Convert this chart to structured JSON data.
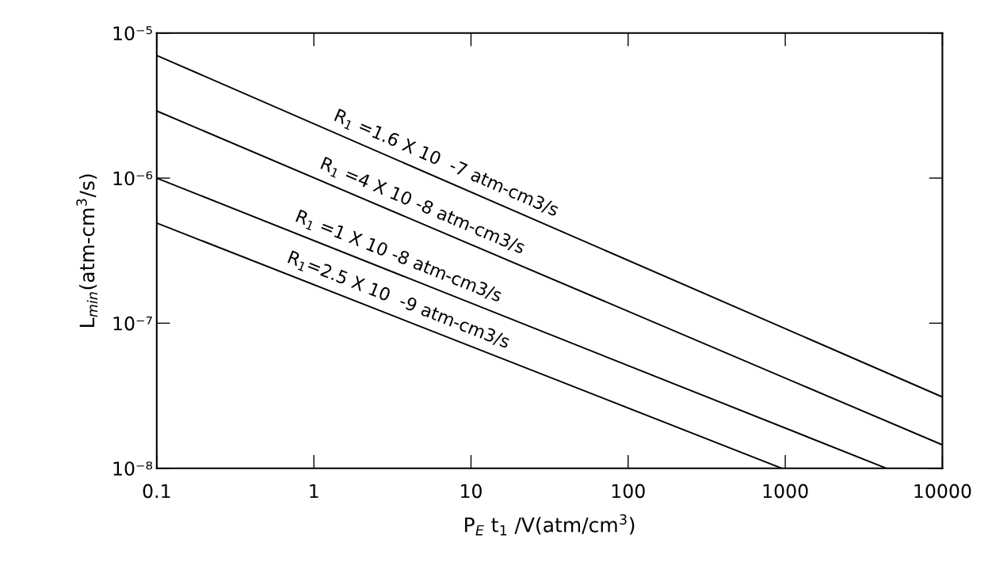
{
  "chart_data": {
    "type": "line",
    "xlabel": "P$_{E}$ t$_{1}$ /V(atm/cm$^{3}$)",
    "ylabel": "L$_{min}$(atm-cm$^{3}$/s)",
    "log": "xy",
    "grid": false,
    "marker": "none",
    "line_style": "solid",
    "xlim": [
      0.1,
      10000
    ],
    "ylim": [
      1e-08,
      1e-05
    ],
    "xticks": [
      {
        "value": 0.1,
        "label": "0.1"
      },
      1,
      10,
      100,
      1000,
      10000
    ],
    "yticks": [
      {
        "value": 1e-08,
        "label": "10⁻⁸"
      },
      {
        "value": 1e-07,
        "label": "10⁻⁷"
      },
      {
        "value": 1e-06,
        "label": "10⁻⁶"
      },
      {
        "value": 1e-05,
        "label": "10⁻⁵"
      }
    ],
    "series": [
      {
        "color": "#000000",
        "x": [
          0.1,
          10000
        ],
        "values": [
          7e-06,
          3.1e-08
        ]
      },
      {
        "color": "#000000",
        "x": [
          0.1,
          10000
        ],
        "values": [
          2.9e-06,
          1.45e-08
        ]
      },
      {
        "color": "#000000",
        "x": [
          0.1,
          4400
        ],
        "values": [
          1e-06,
          1e-08
        ]
      },
      {
        "color": "#000000",
        "x": [
          0.1,
          950
        ],
        "values": [
          4.9e-07,
          1e-08
        ]
      }
    ],
    "annotations": [
      "R$_{1}$ =1.6 X 10  -7 atm-cm3/s",
      "R$_{1}$ =4 X 10 -8 atm-cm3/s",
      "R$_{1}$ =1 X 10 -8 atm-cm3/s",
      "R$_{1}$=2.5 X 10  -9 atm-cm3/s"
    ]
  }
}
